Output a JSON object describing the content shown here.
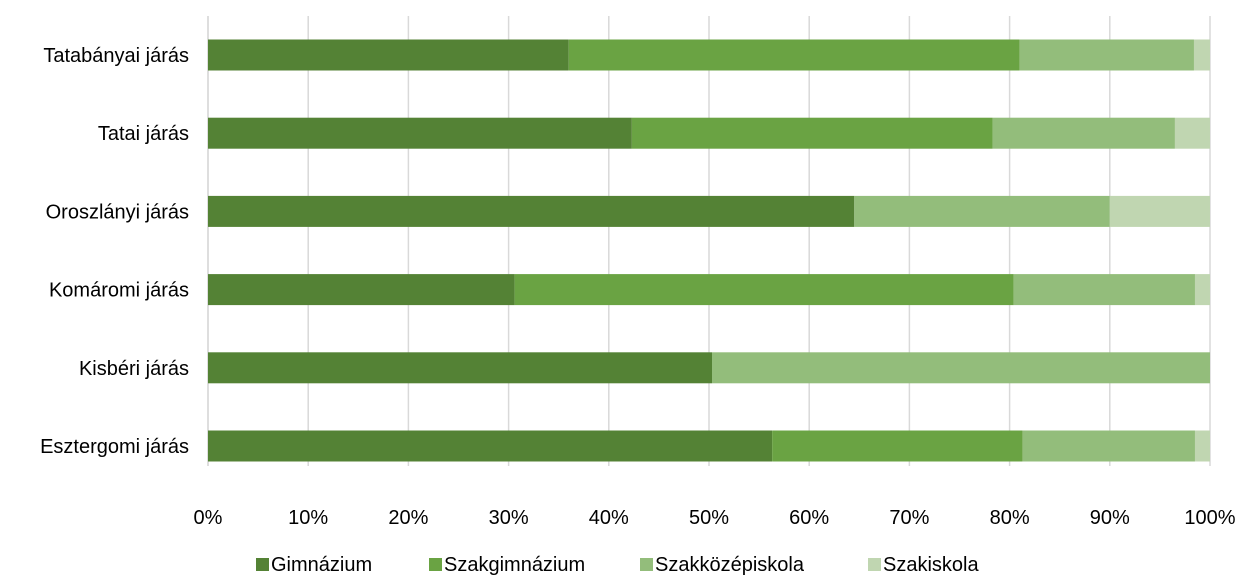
{
  "chart_data": {
    "type": "bar",
    "orientation": "horizontal",
    "stacked": "percent",
    "title": "",
    "xlabel": "",
    "ylabel": "",
    "xlim": [
      0,
      100
    ],
    "grid": true,
    "legend_position": "bottom",
    "categories": [
      "Tatabányai járás",
      "Tatai járás",
      "Oroszlányi járás",
      "Komáromi járás",
      "Kisbéri járás",
      "Esztergomi járás"
    ],
    "x_ticks": [
      "0%",
      "10%",
      "20%",
      "30%",
      "40%",
      "50%",
      "60%",
      "70%",
      "80%",
      "90%",
      "100%"
    ],
    "series": [
      {
        "name": "Gimnázium",
        "color": "#548235",
        "values": [
          36.0,
          42.3,
          64.5,
          30.6,
          50.3,
          56.3
        ]
      },
      {
        "name": "Szakgimnázium",
        "color": "#6aa343",
        "values": [
          45.0,
          36.0,
          0,
          49.8,
          0,
          25.0
        ]
      },
      {
        "name": "Szakközépiskola",
        "color": "#93bd7b",
        "values": [
          17.4,
          18.2,
          25.5,
          18.1,
          49.7,
          17.2
        ]
      },
      {
        "name": "Szakiskola",
        "color": "#c0d6b1",
        "values": [
          1.6,
          3.5,
          10.0,
          1.5,
          0,
          1.5
        ]
      }
    ]
  }
}
